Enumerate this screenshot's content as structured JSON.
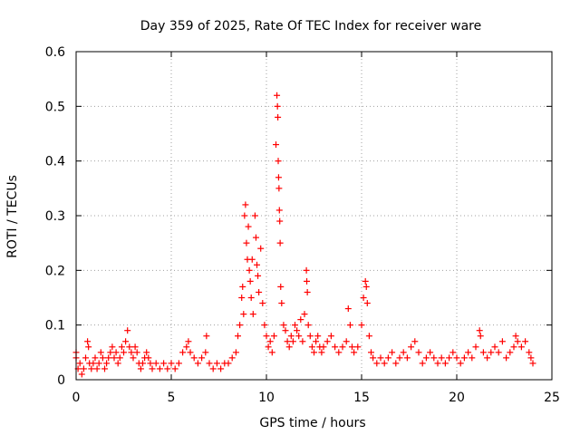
{
  "chart_data": {
    "type": "scatter",
    "title": "Day 359 of 2025, Rate Of TEC Index for receiver ware",
    "xlabel": "GPS time / hours",
    "ylabel": "ROTI / TECUs",
    "xlim": [
      0,
      25
    ],
    "ylim": [
      0,
      0.6
    ],
    "xticks": [
      0,
      5,
      10,
      15,
      20,
      25
    ],
    "yticks": [
      0,
      0.1,
      0.2,
      0.3,
      0.4,
      0.5,
      0.6
    ],
    "xtick_labels": [
      "0",
      "5",
      "10",
      "15",
      "20",
      "25"
    ],
    "ytick_labels": [
      "0",
      "0.1",
      "0.2",
      "0.3",
      "0.4",
      "0.5",
      "0.6"
    ],
    "grid": true,
    "marker": "plus",
    "marker_color": "#ff0000",
    "series": [
      {
        "points": [
          [
            0.0,
            0.05
          ],
          [
            0.0,
            0.04
          ],
          [
            0.1,
            0.02
          ],
          [
            0.2,
            0.03
          ],
          [
            0.3,
            0.01
          ],
          [
            0.4,
            0.02
          ],
          [
            0.5,
            0.04
          ],
          [
            0.6,
            0.07
          ],
          [
            0.65,
            0.06
          ],
          [
            0.7,
            0.03
          ],
          [
            0.8,
            0.02
          ],
          [
            0.9,
            0.03
          ],
          [
            1.0,
            0.04
          ],
          [
            1.1,
            0.02
          ],
          [
            1.2,
            0.03
          ],
          [
            1.3,
            0.05
          ],
          [
            1.4,
            0.04
          ],
          [
            1.5,
            0.02
          ],
          [
            1.6,
            0.03
          ],
          [
            1.7,
            0.04
          ],
          [
            1.8,
            0.05
          ],
          [
            1.9,
            0.06
          ],
          [
            2.0,
            0.04
          ],
          [
            2.1,
            0.05
          ],
          [
            2.2,
            0.03
          ],
          [
            2.3,
            0.04
          ],
          [
            2.4,
            0.06
          ],
          [
            2.5,
            0.05
          ],
          [
            2.6,
            0.07
          ],
          [
            2.7,
            0.09
          ],
          [
            2.8,
            0.06
          ],
          [
            2.9,
            0.05
          ],
          [
            3.0,
            0.04
          ],
          [
            3.1,
            0.06
          ],
          [
            3.2,
            0.05
          ],
          [
            3.3,
            0.03
          ],
          [
            3.4,
            0.02
          ],
          [
            3.5,
            0.03
          ],
          [
            3.6,
            0.04
          ],
          [
            3.7,
            0.05
          ],
          [
            3.8,
            0.04
          ],
          [
            3.9,
            0.03
          ],
          [
            4.0,
            0.02
          ],
          [
            4.2,
            0.03
          ],
          [
            4.4,
            0.02
          ],
          [
            4.6,
            0.03
          ],
          [
            4.8,
            0.02
          ],
          [
            5.0,
            0.03
          ],
          [
            5.2,
            0.02
          ],
          [
            5.4,
            0.03
          ],
          [
            5.6,
            0.05
          ],
          [
            5.8,
            0.06
          ],
          [
            5.9,
            0.07
          ],
          [
            6.0,
            0.05
          ],
          [
            6.2,
            0.04
          ],
          [
            6.4,
            0.03
          ],
          [
            6.6,
            0.04
          ],
          [
            6.8,
            0.05
          ],
          [
            6.85,
            0.08
          ],
          [
            7.0,
            0.03
          ],
          [
            7.2,
            0.02
          ],
          [
            7.4,
            0.03
          ],
          [
            7.6,
            0.02
          ],
          [
            7.8,
            0.03
          ],
          [
            8.0,
            0.03
          ],
          [
            8.2,
            0.04
          ],
          [
            8.4,
            0.05
          ],
          [
            8.5,
            0.08
          ],
          [
            8.6,
            0.1
          ],
          [
            8.7,
            0.15
          ],
          [
            8.75,
            0.17
          ],
          [
            8.8,
            0.12
          ],
          [
            8.85,
            0.3
          ],
          [
            8.9,
            0.32
          ],
          [
            8.95,
            0.25
          ],
          [
            9.0,
            0.22
          ],
          [
            9.05,
            0.28
          ],
          [
            9.1,
            0.2
          ],
          [
            9.15,
            0.18
          ],
          [
            9.2,
            0.15
          ],
          [
            9.25,
            0.22
          ],
          [
            9.3,
            0.12
          ],
          [
            9.4,
            0.3
          ],
          [
            9.45,
            0.26
          ],
          [
            9.5,
            0.21
          ],
          [
            9.55,
            0.19
          ],
          [
            9.6,
            0.16
          ],
          [
            9.7,
            0.24
          ],
          [
            9.8,
            0.14
          ],
          [
            9.9,
            0.1
          ],
          [
            10.0,
            0.08
          ],
          [
            10.1,
            0.06
          ],
          [
            10.2,
            0.07
          ],
          [
            10.3,
            0.05
          ],
          [
            10.4,
            0.08
          ],
          [
            10.5,
            0.43
          ],
          [
            10.55,
            0.52
          ],
          [
            10.58,
            0.5
          ],
          [
            10.6,
            0.48
          ],
          [
            10.62,
            0.4
          ],
          [
            10.64,
            0.37
          ],
          [
            10.66,
            0.35
          ],
          [
            10.68,
            0.31
          ],
          [
            10.7,
            0.29
          ],
          [
            10.72,
            0.25
          ],
          [
            10.75,
            0.17
          ],
          [
            10.8,
            0.14
          ],
          [
            10.9,
            0.1
          ],
          [
            11.0,
            0.09
          ],
          [
            11.1,
            0.07
          ],
          [
            11.2,
            0.06
          ],
          [
            11.3,
            0.08
          ],
          [
            11.4,
            0.07
          ],
          [
            11.5,
            0.1
          ],
          [
            11.6,
            0.09
          ],
          [
            11.7,
            0.08
          ],
          [
            11.8,
            0.11
          ],
          [
            11.9,
            0.07
          ],
          [
            12.0,
            0.12
          ],
          [
            12.1,
            0.2
          ],
          [
            12.12,
            0.18
          ],
          [
            12.15,
            0.16
          ],
          [
            12.2,
            0.1
          ],
          [
            12.3,
            0.08
          ],
          [
            12.4,
            0.06
          ],
          [
            12.5,
            0.05
          ],
          [
            12.6,
            0.07
          ],
          [
            12.7,
            0.08
          ],
          [
            12.8,
            0.06
          ],
          [
            12.9,
            0.05
          ],
          [
            13.0,
            0.06
          ],
          [
            13.2,
            0.07
          ],
          [
            13.4,
            0.08
          ],
          [
            13.6,
            0.06
          ],
          [
            13.8,
            0.05
          ],
          [
            14.0,
            0.06
          ],
          [
            14.2,
            0.07
          ],
          [
            14.3,
            0.13
          ],
          [
            14.4,
            0.1
          ],
          [
            14.5,
            0.06
          ],
          [
            14.6,
            0.05
          ],
          [
            14.8,
            0.06
          ],
          [
            15.0,
            0.1
          ],
          [
            15.1,
            0.15
          ],
          [
            15.2,
            0.18
          ],
          [
            15.25,
            0.17
          ],
          [
            15.3,
            0.14
          ],
          [
            15.4,
            0.08
          ],
          [
            15.5,
            0.05
          ],
          [
            15.6,
            0.04
          ],
          [
            15.8,
            0.03
          ],
          [
            16.0,
            0.04
          ],
          [
            16.2,
            0.03
          ],
          [
            16.4,
            0.04
          ],
          [
            16.6,
            0.05
          ],
          [
            16.8,
            0.03
          ],
          [
            17.0,
            0.04
          ],
          [
            17.2,
            0.05
          ],
          [
            17.4,
            0.04
          ],
          [
            17.6,
            0.06
          ],
          [
            17.8,
            0.07
          ],
          [
            18.0,
            0.05
          ],
          [
            18.2,
            0.03
          ],
          [
            18.4,
            0.04
          ],
          [
            18.6,
            0.05
          ],
          [
            18.8,
            0.04
          ],
          [
            19.0,
            0.03
          ],
          [
            19.2,
            0.04
          ],
          [
            19.4,
            0.03
          ],
          [
            19.6,
            0.04
          ],
          [
            19.8,
            0.05
          ],
          [
            20.0,
            0.04
          ],
          [
            20.2,
            0.03
          ],
          [
            20.4,
            0.04
          ],
          [
            20.6,
            0.05
          ],
          [
            20.8,
            0.04
          ],
          [
            21.0,
            0.06
          ],
          [
            21.2,
            0.09
          ],
          [
            21.25,
            0.08
          ],
          [
            21.4,
            0.05
          ],
          [
            21.6,
            0.04
          ],
          [
            21.8,
            0.05
          ],
          [
            22.0,
            0.06
          ],
          [
            22.2,
            0.05
          ],
          [
            22.4,
            0.07
          ],
          [
            22.6,
            0.04
          ],
          [
            22.8,
            0.05
          ],
          [
            23.0,
            0.06
          ],
          [
            23.1,
            0.08
          ],
          [
            23.2,
            0.07
          ],
          [
            23.4,
            0.06
          ],
          [
            23.6,
            0.07
          ],
          [
            23.8,
            0.05
          ],
          [
            23.9,
            0.04
          ],
          [
            24.0,
            0.03
          ]
        ]
      }
    ]
  }
}
